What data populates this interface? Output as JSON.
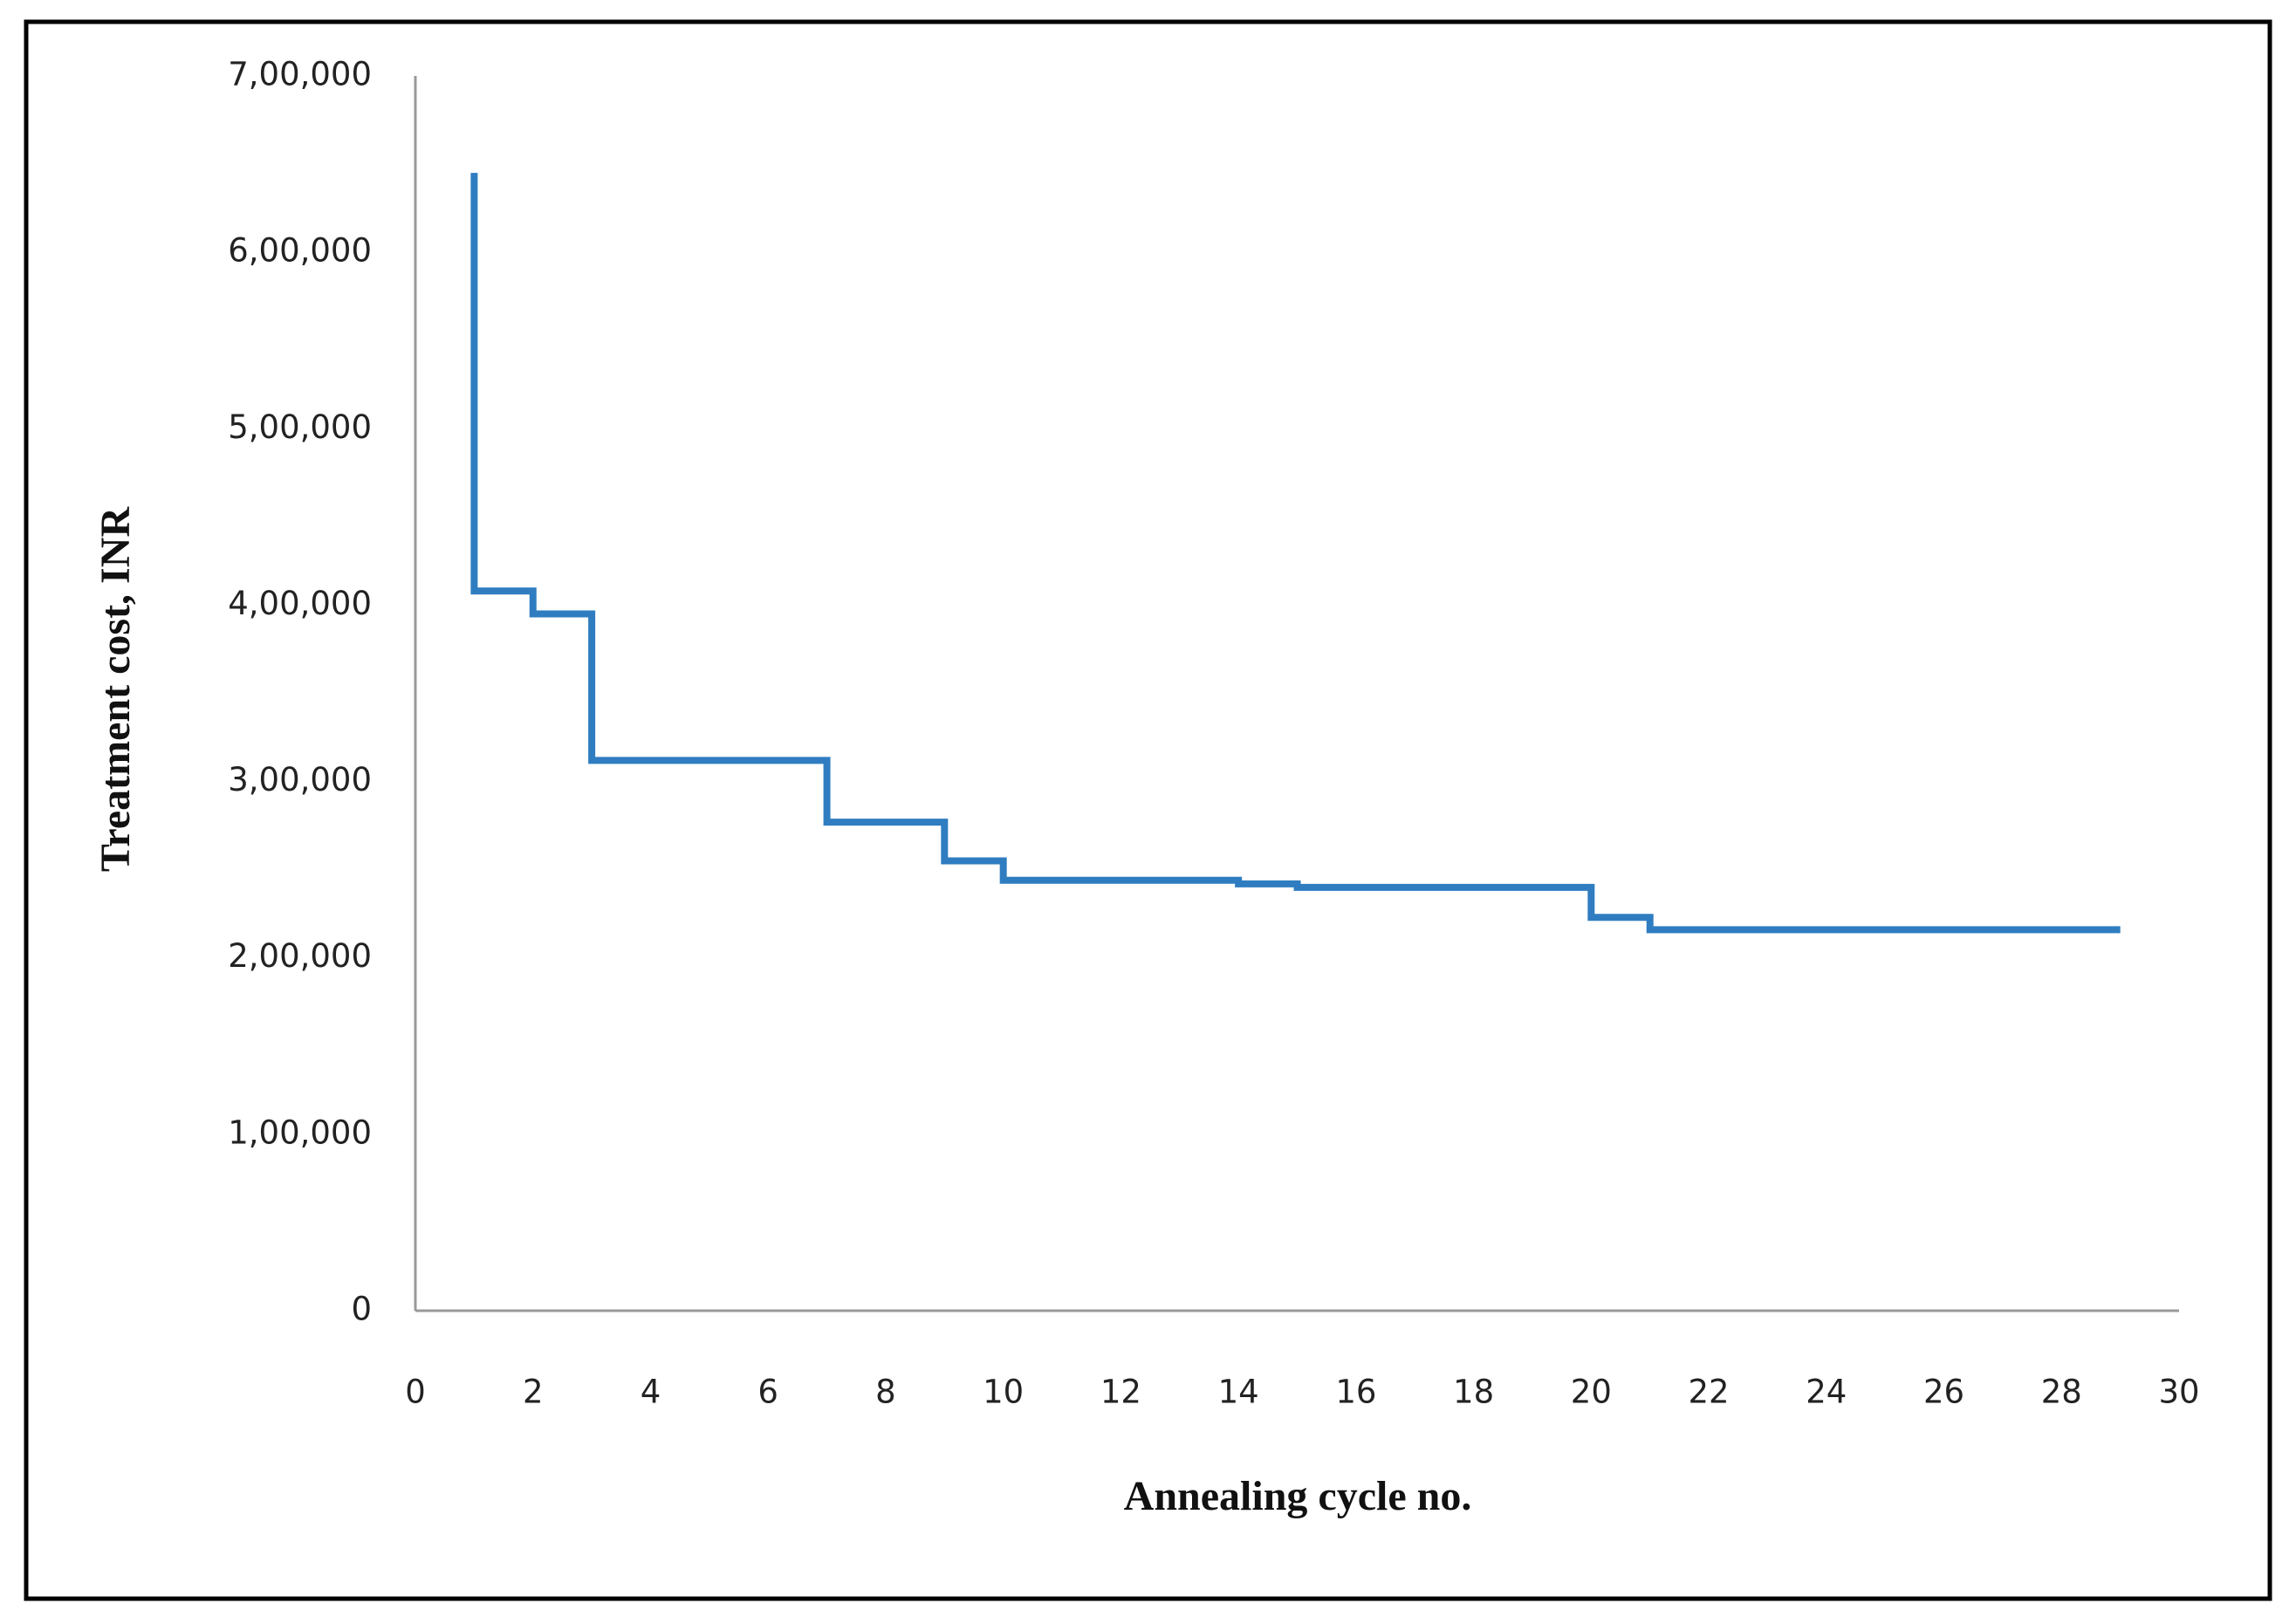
{
  "chart_data": {
    "type": "line",
    "step": "post",
    "x_label": "Annealing cycle no.",
    "y_label": "Treatment cost, INR",
    "x": [
      1,
      1,
      2,
      3,
      7,
      9,
      10,
      14,
      15,
      20,
      21,
      29
    ],
    "values": [
      645000,
      408000,
      395000,
      312000,
      277000,
      255000,
      244000,
      242000,
      240000,
      223000,
      216000,
      216000
    ],
    "color": "#2f7dc0",
    "xlim": [
      0,
      30
    ],
    "xticks": [
      0,
      2,
      4,
      6,
      8,
      10,
      12,
      14,
      16,
      18,
      20,
      22,
      24,
      26,
      28,
      30
    ],
    "ylim": [
      0,
      700000
    ],
    "yticks": [
      0,
      {
        "value": 100000,
        "label": "1,00,000"
      },
      {
        "value": 200000,
        "label": "2,00,000"
      },
      {
        "value": 300000,
        "label": "3,00,000"
      },
      {
        "value": 400000,
        "label": "4,00,000"
      },
      {
        "value": 500000,
        "label": "5,00,000"
      },
      {
        "value": 600000,
        "label": "6,00,000"
      },
      {
        "value": 700000,
        "label": "7,00,000"
      }
    ],
    "grid": false
  }
}
